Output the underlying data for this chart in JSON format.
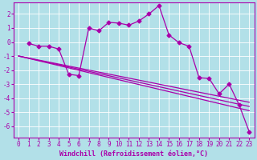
{
  "xlabel": "Windchill (Refroidissement éolien,°C)",
  "background_color": "#b2e0e8",
  "grid_color": "#ffffff",
  "line_color": "#aa00aa",
  "xlim": [
    -0.5,
    23.5
  ],
  "ylim": [
    -6.8,
    2.8
  ],
  "xticks": [
    0,
    1,
    2,
    3,
    4,
    5,
    6,
    7,
    8,
    9,
    10,
    11,
    12,
    13,
    14,
    15,
    16,
    17,
    18,
    19,
    20,
    21,
    22,
    23
  ],
  "yticks": [
    -6,
    -5,
    -4,
    -3,
    -2,
    -1,
    0,
    1,
    2
  ],
  "line1_x": [
    1,
    2,
    3,
    4,
    5,
    6,
    7,
    8,
    9,
    10,
    11,
    12,
    13,
    14,
    15,
    16,
    17,
    18,
    19,
    20,
    21,
    22,
    23
  ],
  "line1_y": [
    -0.1,
    -0.3,
    -0.3,
    -0.5,
    -2.3,
    -2.4,
    1.0,
    0.8,
    1.4,
    1.35,
    1.2,
    1.5,
    2.0,
    2.6,
    0.5,
    -0.05,
    -0.3,
    -2.55,
    -2.6,
    -3.7,
    -3.0,
    -4.5,
    -6.4
  ],
  "line2_x": [
    0,
    23
  ],
  "line2_y": [
    -1.0,
    -4.3
  ],
  "line3_x": [
    0,
    23
  ],
  "line3_y": [
    -1.0,
    -4.6
  ],
  "line4_x": [
    0,
    23
  ],
  "line4_y": [
    -1.0,
    -4.9
  ],
  "marker": "D",
  "marker_size": 2.5,
  "linewidth": 0.9,
  "tick_fontsize": 5.5,
  "xlabel_fontsize": 6.0
}
